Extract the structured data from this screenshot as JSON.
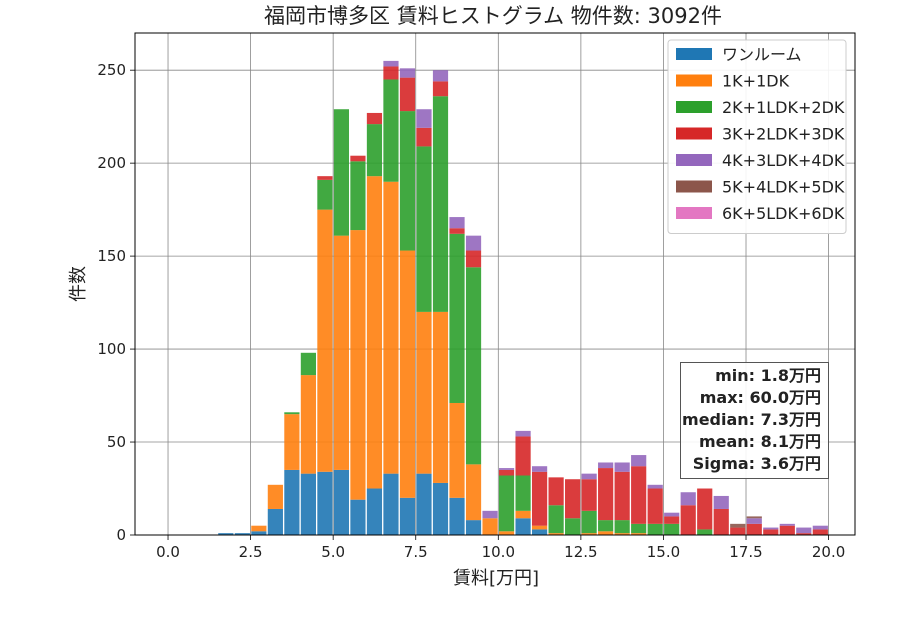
{
  "chart_data": {
    "type": "bar",
    "stacked": true,
    "title": "福岡市博多区 賃料ヒストグラム 物件数: 3092件",
    "xlabel": "賃料[万円]",
    "ylabel": "件数",
    "xlim": [
      -1.0,
      20.8
    ],
    "ylim": [
      0,
      270
    ],
    "x_ticks": [
      "0.0",
      "2.5",
      "5.0",
      "7.5",
      "10.0",
      "12.5",
      "15.0",
      "17.5",
      "20.0"
    ],
    "y_ticks": [
      "0",
      "50",
      "100",
      "150",
      "200",
      "250"
    ],
    "grid": true,
    "legend_position": "top-right",
    "bin_width": 0.5,
    "bin_starts": [
      1.5,
      2.0,
      2.5,
      3.0,
      3.5,
      4.0,
      4.5,
      5.0,
      5.5,
      6.0,
      6.5,
      7.0,
      7.5,
      8.0,
      8.5,
      9.0,
      9.5,
      10.0,
      10.5,
      11.0,
      11.5,
      12.0,
      12.5,
      13.0,
      13.5,
      14.0,
      14.5,
      15.0,
      15.5,
      16.0,
      16.5,
      17.0,
      17.5,
      18.0,
      18.5,
      19.0,
      19.5
    ],
    "series": [
      {
        "name": "ワンルーム",
        "color": "#1f77b4",
        "values": [
          1,
          1,
          2,
          14,
          35,
          33,
          34,
          35,
          19,
          25,
          33,
          20,
          33,
          28,
          20,
          8,
          0,
          0,
          9,
          3,
          0,
          0,
          0,
          0,
          0,
          0,
          0,
          0,
          0,
          0,
          0,
          0,
          0,
          0,
          0,
          0,
          0
        ]
      },
      {
        "name": "1K+1DK",
        "color": "#ff7f0e",
        "values": [
          0,
          0,
          3,
          13,
          30,
          53,
          141,
          126,
          145,
          168,
          157,
          133,
          87,
          92,
          51,
          30,
          9,
          2,
          4,
          2,
          1,
          0,
          1,
          2,
          1,
          1,
          0,
          0,
          0,
          0,
          0,
          0,
          0,
          0,
          0,
          0,
          0
        ]
      },
      {
        "name": "2K+1LDK+2DK",
        "color": "#2ca02c",
        "values": [
          0,
          0,
          0,
          0,
          1,
          12,
          16,
          68,
          37,
          28,
          55,
          75,
          89,
          116,
          91,
          106,
          0,
          30,
          19,
          0,
          15,
          9,
          12,
          6,
          7,
          5,
          6,
          6,
          0,
          3,
          0,
          0,
          0,
          0,
          0,
          0,
          0
        ]
      },
      {
        "name": "3K+2LDK+3DK",
        "color": "#d62728",
        "values": [
          0,
          0,
          0,
          0,
          0,
          0,
          2,
          0,
          3,
          6,
          7,
          18,
          10,
          8,
          3,
          9,
          0,
          3,
          21,
          29,
          15,
          21,
          17,
          28,
          26,
          31,
          19,
          4,
          16,
          22,
          14,
          4,
          6,
          3,
          5,
          1,
          3
        ]
      },
      {
        "name": "4K+3LDK+4DK",
        "color": "#9467bd",
        "values": [
          0,
          0,
          0,
          0,
          0,
          0,
          0,
          0,
          0,
          0,
          3,
          5,
          10,
          6,
          6,
          8,
          4,
          1,
          3,
          3,
          0,
          0,
          3,
          3,
          5,
          6,
          2,
          2,
          7,
          0,
          7,
          0,
          3,
          1,
          1,
          3,
          2
        ]
      },
      {
        "name": "5K+4LDK+5DK",
        "color": "#8c564b",
        "values": [
          0,
          0,
          0,
          0,
          0,
          0,
          0,
          0,
          0,
          0,
          0,
          0,
          0,
          0,
          0,
          0,
          0,
          0,
          0,
          0,
          0,
          0,
          0,
          0,
          0,
          0,
          0,
          0,
          0,
          0,
          0,
          2,
          1,
          0,
          0,
          0,
          0
        ]
      },
      {
        "name": "6K+5LDK+6DK",
        "color": "#e377c2",
        "values": [
          0,
          0,
          0,
          0,
          0,
          0,
          0,
          0,
          0,
          0,
          0,
          0,
          0,
          0,
          0,
          0,
          0,
          0,
          0,
          0,
          0,
          0,
          0,
          0,
          0,
          0,
          0,
          0,
          0,
          0,
          0,
          0,
          0,
          0,
          0,
          0,
          0
        ]
      }
    ],
    "stats": [
      "min: 1.8万円",
      "max: 60.0万円",
      "median: 7.3万円",
      "mean: 8.1万円",
      "Sigma: 3.6万円"
    ]
  }
}
